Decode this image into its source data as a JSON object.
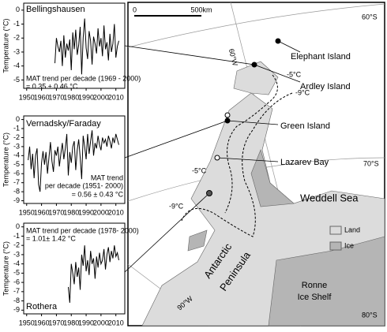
{
  "chart_data": [
    {
      "type": "line",
      "title": "Bellingshausen",
      "y_label": "Temperature (°C)",
      "annotations": [
        "MAT trend per decade (1969 - 2000)",
        "= 0.35 ± 0.46 °C"
      ],
      "color": "#000000",
      "xlim": [
        1948,
        2016
      ],
      "xticks": [
        1950,
        1960,
        1970,
        1980,
        1990,
        2000,
        2010
      ],
      "ylim": [
        -5.6,
        0.5
      ],
      "yticks": [
        0,
        -1,
        -2,
        -3,
        -4,
        -5
      ],
      "x": [
        1969,
        1970,
        1971,
        1972,
        1973,
        1974,
        1975,
        1976,
        1977,
        1978,
        1979,
        1980,
        1981,
        1982,
        1983,
        1984,
        1985,
        1986,
        1987,
        1988,
        1989,
        1990,
        1991,
        1992,
        1993,
        1994,
        1995,
        1996,
        1997,
        1998,
        1999,
        2000,
        2001,
        2002,
        2003,
        2004,
        2005,
        2006,
        2007,
        2008,
        2009,
        2010,
        2011,
        2012
      ],
      "values": [
        -3.8,
        -2.0,
        -2.6,
        -3.0,
        -2.2,
        -4.0,
        -1.8,
        -3.4,
        -2.4,
        -2.9,
        -2.1,
        -4.3,
        -1.6,
        -2.8,
        -1.4,
        -3.2,
        -2.5,
        -1.2,
        -4.6,
        -2.0,
        -0.6,
        -2.7,
        -3.5,
        -1.5,
        -2.2,
        -3.9,
        -1.9,
        -2.4,
        -3.1,
        -1.3,
        -2.6,
        -2.0,
        -3.3,
        -1.1,
        -2.8,
        -2.3,
        -3.6,
        -1.7,
        -3.0,
        -2.4,
        -1.0,
        -3.4,
        -2.6,
        -2.2
      ]
    },
    {
      "type": "line",
      "title": "Vernadsky/Faraday",
      "y_label": "Temperature (°C)",
      "annotations": [
        "MAT trend",
        "per decade (1951- 2000)",
        "= 0.56 ± 0.43 °C"
      ],
      "color": "#000000",
      "xlim": [
        1948,
        2016
      ],
      "xticks": [
        1950,
        1960,
        1970,
        1980,
        1990,
        2000,
        2010
      ],
      "ylim": [
        -9.3,
        0.4
      ],
      "yticks": [
        0,
        -1,
        -2,
        -3,
        -4,
        -5,
        -6,
        -7,
        -8,
        -9
      ],
      "x": [
        1951,
        1952,
        1953,
        1954,
        1955,
        1956,
        1957,
        1958,
        1959,
        1960,
        1961,
        1962,
        1963,
        1964,
        1965,
        1966,
        1967,
        1968,
        1969,
        1970,
        1971,
        1972,
        1973,
        1974,
        1975,
        1976,
        1977,
        1978,
        1979,
        1980,
        1981,
        1982,
        1983,
        1984,
        1985,
        1986,
        1987,
        1988,
        1989,
        1990,
        1991,
        1992,
        1993,
        1994,
        1995,
        1996,
        1997,
        1998,
        1999,
        2000,
        2001,
        2002,
        2003,
        2004,
        2005,
        2006,
        2007,
        2008,
        2009,
        2010,
        2011,
        2012
      ],
      "values": [
        -4.5,
        -3.0,
        -5.5,
        -3.8,
        -6.5,
        -4.0,
        -3.2,
        -7.2,
        -8.0,
        -4.8,
        -3.5,
        -5.0,
        -3.6,
        -6.0,
        -4.2,
        -2.5,
        -4.6,
        -5.8,
        -3.4,
        -4.0,
        -3.0,
        -5.2,
        -3.8,
        -2.6,
        -4.4,
        -3.2,
        -1.6,
        -6.2,
        -3.6,
        -4.8,
        -3.0,
        -2.4,
        -5.6,
        -3.4,
        -2.2,
        -4.2,
        -6.6,
        -1.8,
        -3.0,
        -4.4,
        -1.6,
        -3.8,
        -2.4,
        -1.2,
        -4.0,
        -2.6,
        -3.2,
        -1.8,
        -2.8,
        -3.4,
        -2.0,
        -2.6,
        -2.2,
        -3.0,
        -1.8,
        -2.4,
        -3.2,
        -2.0,
        -2.6,
        -1.6,
        -2.2,
        -2.8
      ]
    },
    {
      "type": "line",
      "title": "Rothera",
      "y_label": "Temperature (°C)",
      "annotations": [
        "MAT trend per decade (1978- 2000)",
        "= 1.01± 1.42 °C"
      ],
      "color": "#000000",
      "xlim": [
        1948,
        2016
      ],
      "xticks": [
        1950,
        1960,
        1970,
        1980,
        1990,
        2000,
        2010
      ],
      "ylim": [
        -9.4,
        0.4
      ],
      "yticks": [
        0,
        -1,
        -2,
        -3,
        -4,
        -5,
        -6,
        -7,
        -8,
        -9
      ],
      "x": [
        1978,
        1979,
        1980,
        1981,
        1982,
        1983,
        1984,
        1985,
        1986,
        1987,
        1988,
        1989,
        1990,
        1991,
        1992,
        1993,
        1994,
        1995,
        1996,
        1997,
        1998,
        1999,
        2000,
        2001,
        2002,
        2003,
        2004,
        2005,
        2006,
        2007,
        2008,
        2009,
        2010,
        2011,
        2012
      ],
      "values": [
        -6.5,
        -8.2,
        -4.0,
        -5.0,
        -6.2,
        -3.8,
        -5.4,
        -4.4,
        -6.8,
        -3.0,
        -4.2,
        -2.0,
        -4.8,
        -3.6,
        -5.2,
        -2.6,
        -4.0,
        -3.4,
        -5.6,
        -3.2,
        -4.4,
        -2.8,
        -4.0,
        -3.6,
        -2.4,
        -4.6,
        -3.0,
        -2.2,
        -3.8,
        -2.6,
        -3.4,
        -2.0,
        -3.2,
        -2.8,
        -3.6
      ]
    }
  ],
  "map": {
    "scale": [
      "0",
      "500km"
    ],
    "latitudes": [
      "60°S",
      "70°S",
      "80°S"
    ],
    "longitudes": [
      "60°W",
      "90°W"
    ],
    "places": [
      "Elephant Island",
      "Ardley Island",
      "Green Island",
      "Lazarev Bay"
    ],
    "isotherms": [
      "-5°C",
      "-9°C",
      "-5°C",
      "-9°C"
    ],
    "regions": [
      "Weddell Sea",
      "Antarctic",
      "Peninsula",
      "Ronne",
      "Ice Shelf"
    ],
    "legend": [
      "Land",
      "Ice"
    ]
  }
}
